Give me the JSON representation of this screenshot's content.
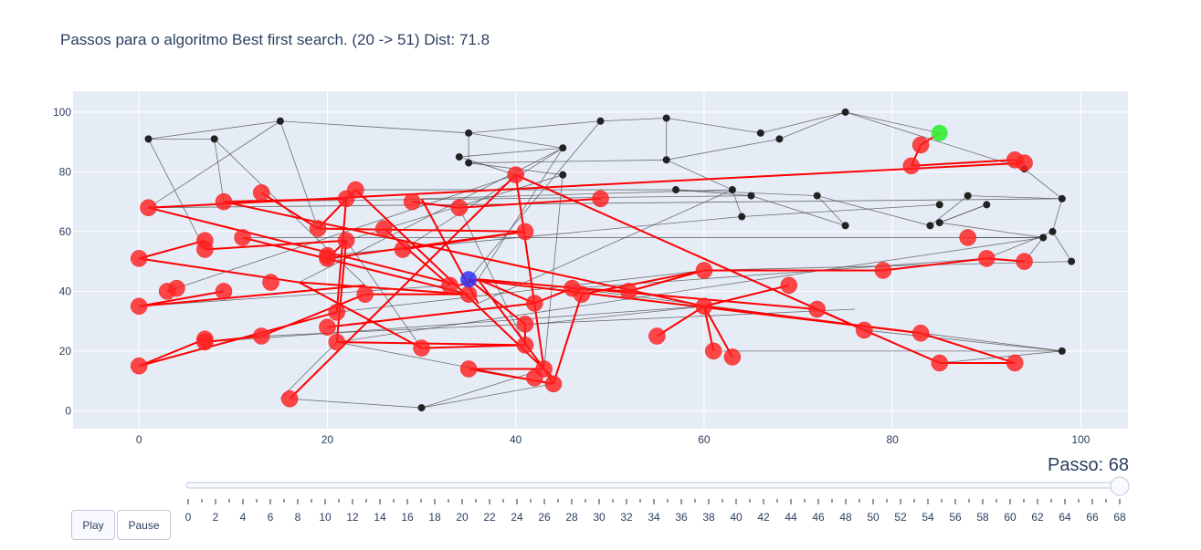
{
  "chart_data": {
    "type": "scatter",
    "title": "Passos para o algoritmo Best first search. (20 -> 51) Dist: 71.8",
    "xlim": [
      -7,
      105
    ],
    "ylim": [
      -6,
      107
    ],
    "x_ticks": [
      0,
      20,
      40,
      60,
      80,
      100
    ],
    "y_ticks": [
      0,
      20,
      40,
      60,
      80,
      100
    ],
    "grid": true,
    "graph_nodes": [
      [
        1,
        91
      ],
      [
        8,
        91
      ],
      [
        15,
        97
      ],
      [
        35,
        93
      ],
      [
        34,
        85
      ],
      [
        35,
        83
      ],
      [
        45,
        88
      ],
      [
        45,
        79
      ],
      [
        49,
        97
      ],
      [
        56,
        98
      ],
      [
        56,
        84
      ],
      [
        66,
        93
      ],
      [
        68,
        91
      ],
      [
        75,
        100
      ],
      [
        57,
        74
      ],
      [
        63,
        74
      ],
      [
        65,
        72
      ],
      [
        72,
        72
      ],
      [
        64,
        65
      ],
      [
        75,
        62
      ],
      [
        84,
        62
      ],
      [
        85,
        69
      ],
      [
        85,
        63
      ],
      [
        88,
        72
      ],
      [
        90,
        69
      ],
      [
        94,
        81
      ],
      [
        98,
        71
      ],
      [
        97,
        60
      ],
      [
        96,
        58
      ],
      [
        99,
        50
      ],
      [
        98,
        20
      ],
      [
        30,
        1
      ]
    ],
    "graph_edges": [
      [
        1,
        91,
        15,
        97
      ],
      [
        1,
        91,
        8,
        91
      ],
      [
        1,
        91,
        7,
        54
      ],
      [
        8,
        91,
        9,
        70
      ],
      [
        8,
        91,
        24,
        42
      ],
      [
        15,
        97,
        35,
        93
      ],
      [
        15,
        97,
        19,
        61
      ],
      [
        15,
        97,
        1,
        68
      ],
      [
        35,
        93,
        49,
        97
      ],
      [
        35,
        93,
        45,
        88
      ],
      [
        35,
        93,
        35,
        83
      ],
      [
        34,
        85,
        45,
        88
      ],
      [
        34,
        85,
        40,
        79
      ],
      [
        35,
        83,
        45,
        79
      ],
      [
        35,
        83,
        56,
        84
      ],
      [
        45,
        88,
        28,
        54
      ],
      [
        45,
        88,
        36,
        44
      ],
      [
        45,
        79,
        22,
        57
      ],
      [
        45,
        79,
        43,
        14
      ],
      [
        49,
        97,
        56,
        98
      ],
      [
        49,
        97,
        35,
        44
      ],
      [
        56,
        98,
        56,
        84
      ],
      [
        56,
        98,
        66,
        93
      ],
      [
        56,
        84,
        68,
        91
      ],
      [
        56,
        84,
        63,
        74
      ],
      [
        66,
        93,
        75,
        100
      ],
      [
        68,
        91,
        75,
        100
      ],
      [
        75,
        100,
        85,
        93
      ],
      [
        75,
        100,
        94,
        81
      ],
      [
        57,
        74,
        72,
        72
      ],
      [
        57,
        74,
        65,
        72
      ],
      [
        63,
        74,
        64,
        65
      ],
      [
        63,
        74,
        36,
        36
      ],
      [
        65,
        72,
        75,
        62
      ],
      [
        72,
        72,
        84,
        62
      ],
      [
        72,
        72,
        75,
        62
      ],
      [
        64,
        65,
        85,
        69
      ],
      [
        84,
        62,
        88,
        72
      ],
      [
        85,
        63,
        90,
        69
      ],
      [
        85,
        63,
        96,
        58
      ],
      [
        88,
        72,
        98,
        71
      ],
      [
        90,
        69,
        85,
        63
      ],
      [
        94,
        81,
        98,
        71
      ],
      [
        98,
        71,
        97,
        60
      ],
      [
        97,
        60,
        99,
        50
      ],
      [
        97,
        60,
        90,
        51
      ],
      [
        96,
        58,
        88,
        58
      ],
      [
        96,
        58,
        94,
        50
      ],
      [
        99,
        50,
        60,
        47
      ],
      [
        98,
        20,
        77,
        27
      ],
      [
        98,
        20,
        85,
        16
      ],
      [
        98,
        20,
        46,
        41
      ],
      [
        30,
        1,
        44,
        9
      ],
      [
        30,
        1,
        16,
        4
      ],
      [
        30,
        1,
        43,
        14
      ],
      [
        1,
        68,
        98,
        71
      ],
      [
        9,
        70,
        65,
        72
      ],
      [
        23,
        74,
        57,
        74
      ],
      [
        30,
        71,
        63,
        74
      ],
      [
        11,
        58,
        96,
        58
      ],
      [
        20,
        52,
        64,
        65
      ],
      [
        46,
        41,
        90,
        51
      ],
      [
        21,
        33,
        60,
        47
      ],
      [
        21,
        23,
        96,
        58
      ],
      [
        13,
        25,
        76,
        34
      ],
      [
        7,
        23,
        60,
        35
      ],
      [
        21,
        23,
        44,
        9
      ],
      [
        0,
        35,
        33,
        42
      ],
      [
        3,
        40,
        40,
        79
      ],
      [
        17,
        43,
        45,
        88
      ],
      [
        15,
        4,
        21,
        23
      ],
      [
        22,
        57,
        30,
        21
      ],
      [
        34,
        68,
        41,
        22
      ],
      [
        42,
        29,
        60,
        35
      ],
      [
        62,
        20,
        98,
        20
      ]
    ],
    "path_edges": [
      [
        85,
        93,
        83,
        89
      ],
      [
        83,
        89,
        82,
        82
      ],
      [
        82,
        82,
        93,
        84
      ],
      [
        93,
        84,
        94,
        83
      ],
      [
        94,
        83,
        1,
        68
      ],
      [
        1,
        68,
        34,
        42
      ],
      [
        34,
        42,
        36,
        44
      ],
      [
        36,
        44,
        42,
        36
      ],
      [
        42,
        36,
        46,
        41
      ],
      [
        46,
        41,
        52,
        40
      ],
      [
        52,
        40,
        60,
        47
      ],
      [
        60,
        47,
        79,
        47
      ],
      [
        79,
        47,
        90,
        51
      ],
      [
        90,
        51,
        94,
        50
      ],
      [
        60,
        47,
        47,
        39
      ],
      [
        47,
        39,
        44,
        9
      ],
      [
        44,
        9,
        35,
        14
      ],
      [
        35,
        14,
        43,
        14
      ],
      [
        43,
        14,
        40,
        79
      ],
      [
        40,
        79,
        77,
        27
      ],
      [
        77,
        27,
        85,
        16
      ],
      [
        85,
        16,
        93,
        16
      ],
      [
        93,
        16,
        83,
        26
      ],
      [
        83,
        26,
        35,
        44
      ],
      [
        35,
        44,
        41,
        29
      ],
      [
        41,
        29,
        41,
        22
      ],
      [
        41,
        22,
        30,
        21
      ],
      [
        30,
        21,
        17,
        43
      ],
      [
        17,
        43,
        0,
        51
      ],
      [
        0,
        51,
        7,
        57
      ],
      [
        7,
        57,
        7,
        54
      ],
      [
        7,
        54,
        22,
        57
      ],
      [
        22,
        57,
        21,
        23
      ],
      [
        22,
        57,
        20,
        51
      ],
      [
        20,
        51,
        41,
        60
      ],
      [
        41,
        60,
        19,
        61
      ],
      [
        19,
        61,
        23,
        74
      ],
      [
        23,
        74,
        44,
        11
      ],
      [
        22,
        71,
        9,
        70
      ],
      [
        9,
        70,
        60,
        35
      ],
      [
        60,
        35,
        55,
        25
      ],
      [
        60,
        35,
        61,
        20
      ],
      [
        60,
        35,
        63,
        18
      ],
      [
        60,
        35,
        69,
        42
      ],
      [
        60,
        35,
        83,
        26
      ],
      [
        20,
        28,
        42,
        36
      ],
      [
        21,
        33,
        22,
        71
      ],
      [
        11,
        58,
        35,
        39
      ],
      [
        35,
        39,
        24,
        39
      ],
      [
        24,
        39,
        13,
        25
      ],
      [
        13,
        25,
        7,
        23
      ],
      [
        7,
        24,
        0,
        15
      ],
      [
        0,
        15,
        21,
        33
      ],
      [
        0,
        35,
        9,
        40
      ],
      [
        3,
        40,
        4,
        41
      ],
      [
        28,
        54,
        41,
        60
      ],
      [
        29,
        70,
        34,
        68
      ],
      [
        34,
        68,
        49,
        71
      ],
      [
        30,
        71,
        36,
        36
      ],
      [
        16,
        4,
        40,
        79
      ],
      [
        36,
        44,
        43,
        14
      ],
      [
        36,
        44,
        72,
        34
      ],
      [
        17,
        43,
        35,
        39
      ],
      [
        21,
        23,
        41,
        22
      ],
      [
        44,
        9,
        43,
        14
      ],
      [
        0,
        35,
        24,
        42
      ],
      [
        26,
        61,
        33,
        42
      ],
      [
        13,
        73,
        19,
        61
      ],
      [
        72,
        34,
        77,
        27
      ]
    ],
    "visited_nodes": [
      [
        83,
        89
      ],
      [
        82,
        82
      ],
      [
        93,
        84
      ],
      [
        94,
        83
      ],
      [
        1,
        68
      ],
      [
        9,
        70
      ],
      [
        22,
        71
      ],
      [
        23,
        74
      ],
      [
        13,
        73
      ],
      [
        29,
        70
      ],
      [
        34,
        68
      ],
      [
        49,
        71
      ],
      [
        40,
        79
      ],
      [
        41,
        60
      ],
      [
        19,
        61
      ],
      [
        26,
        61
      ],
      [
        22,
        57
      ],
      [
        7,
        57
      ],
      [
        7,
        54
      ],
      [
        11,
        58
      ],
      [
        20,
        52
      ],
      [
        20,
        51
      ],
      [
        28,
        54
      ],
      [
        0,
        51
      ],
      [
        0,
        35
      ],
      [
        3,
        40
      ],
      [
        4,
        41
      ],
      [
        9,
        40
      ],
      [
        14,
        43
      ],
      [
        24,
        39
      ],
      [
        33,
        42
      ],
      [
        35,
        39
      ],
      [
        42,
        36
      ],
      [
        46,
        41
      ],
      [
        47,
        39
      ],
      [
        52,
        40
      ],
      [
        60,
        47
      ],
      [
        60,
        35
      ],
      [
        69,
        42
      ],
      [
        72,
        34
      ],
      [
        79,
        47
      ],
      [
        90,
        51
      ],
      [
        94,
        50
      ],
      [
        88,
        58
      ],
      [
        77,
        27
      ],
      [
        83,
        26
      ],
      [
        85,
        16
      ],
      [
        93,
        16
      ],
      [
        55,
        25
      ],
      [
        61,
        20
      ],
      [
        63,
        18
      ],
      [
        41,
        29
      ],
      [
        41,
        22
      ],
      [
        30,
        21
      ],
      [
        21,
        33
      ],
      [
        20,
        28
      ],
      [
        21,
        23
      ],
      [
        13,
        25
      ],
      [
        7,
        24
      ],
      [
        7,
        23
      ],
      [
        0,
        15
      ],
      [
        16,
        4
      ],
      [
        35,
        14
      ],
      [
        42,
        11
      ],
      [
        43,
        14
      ],
      [
        44,
        9
      ]
    ],
    "start_node": [
      85,
      93
    ],
    "current_node": [
      35,
      44
    ],
    "colors": {
      "visited": "#ff2020",
      "path": "#ff0000",
      "edge": "#444444",
      "node": "#222222",
      "start": "#33ee33",
      "current": "#3333ee",
      "plot_bg": "#e5ecf6",
      "grid": "#ffffff"
    }
  },
  "slider": {
    "prefix": "Passo: ",
    "current_value": 68,
    "min": 0,
    "max": 68,
    "tick_labels": [
      "0",
      "2",
      "4",
      "6",
      "8",
      "10",
      "12",
      "14",
      "16",
      "18",
      "20",
      "22",
      "24",
      "26",
      "28",
      "30",
      "32",
      "34",
      "36",
      "38",
      "40",
      "42",
      "44",
      "46",
      "48",
      "50",
      "52",
      "54",
      "56",
      "58",
      "60",
      "62",
      "64",
      "66",
      "68"
    ]
  },
  "controls": {
    "play_label": "Play",
    "pause_label": "Pause"
  }
}
